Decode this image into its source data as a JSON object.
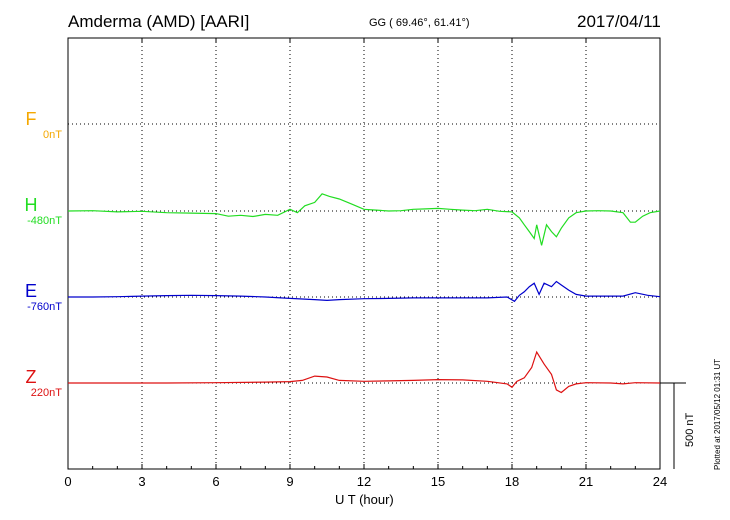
{
  "header": {
    "station": "Amderma (AMD)  [AARI]",
    "coords": "GG ( 69.46°,  61.41°)",
    "date": "2017/04/11"
  },
  "footer": {
    "plotted_text": "Plotted at 2017/05/12 01:31  UT"
  },
  "chart_data": {
    "type": "line",
    "title": "Amderma (AMD)  [AARI]",
    "xlabel": "U T (hour)",
    "ylabel": "",
    "xlim": [
      0,
      24
    ],
    "xticks": [
      0,
      3,
      6,
      9,
      12,
      15,
      18,
      21,
      24
    ],
    "xtick_labels": [
      "0",
      "3",
      "6",
      "9",
      "12",
      "15",
      "18",
      "21",
      "24"
    ],
    "scale_bar": {
      "value": 500,
      "label": "500 nT"
    },
    "grid": true,
    "colors": {
      "F": "#f5a800",
      "H": "#22dd22",
      "E": "#0000cc",
      "Z": "#dd1111"
    },
    "series": [
      {
        "name": "F",
        "baseline_label": "0nT",
        "data": []
      },
      {
        "name": "H",
        "baseline_label": "-480nT",
        "data": [
          [
            0,
            -480
          ],
          [
            1,
            -478
          ],
          [
            2,
            -485
          ],
          [
            3,
            -482
          ],
          [
            4,
            -490
          ],
          [
            5,
            -492
          ],
          [
            6,
            -495
          ],
          [
            6.5,
            -510
          ],
          [
            7,
            -505
          ],
          [
            7.5,
            -512
          ],
          [
            8,
            -500
          ],
          [
            8.5,
            -505
          ],
          [
            9,
            -470
          ],
          [
            9.3,
            -490
          ],
          [
            9.6,
            -450
          ],
          [
            10,
            -430
          ],
          [
            10.3,
            -380
          ],
          [
            10.6,
            -395
          ],
          [
            11,
            -410
          ],
          [
            11.5,
            -440
          ],
          [
            12,
            -470
          ],
          [
            12.5,
            -475
          ],
          [
            13,
            -480
          ],
          [
            13.5,
            -478
          ],
          [
            14,
            -470
          ],
          [
            14.5,
            -468
          ],
          [
            15,
            -465
          ],
          [
            15.5,
            -470
          ],
          [
            16,
            -475
          ],
          [
            16.5,
            -478
          ],
          [
            17,
            -470
          ],
          [
            17.5,
            -482
          ],
          [
            18,
            -485
          ],
          [
            18.3,
            -520
          ],
          [
            18.5,
            -560
          ],
          [
            18.7,
            -600
          ],
          [
            18.9,
            -640
          ],
          [
            19.0,
            -560
          ],
          [
            19.2,
            -680
          ],
          [
            19.4,
            -560
          ],
          [
            19.6,
            -600
          ],
          [
            19.8,
            -630
          ],
          [
            20,
            -580
          ],
          [
            20.3,
            -520
          ],
          [
            20.6,
            -490
          ],
          [
            21,
            -480
          ],
          [
            21.5,
            -478
          ],
          [
            22,
            -480
          ],
          [
            22.5,
            -490
          ],
          [
            22.8,
            -545
          ],
          [
            23,
            -545
          ],
          [
            23.3,
            -510
          ],
          [
            23.6,
            -490
          ],
          [
            24,
            -480
          ]
        ]
      },
      {
        "name": "E",
        "baseline_label": "-760nT",
        "data": [
          [
            0,
            -760
          ],
          [
            1,
            -760
          ],
          [
            2,
            -758
          ],
          [
            3,
            -755
          ],
          [
            4,
            -752
          ],
          [
            5,
            -750
          ],
          [
            6,
            -752
          ],
          [
            7,
            -755
          ],
          [
            8,
            -760
          ],
          [
            9,
            -768
          ],
          [
            10,
            -775
          ],
          [
            10.5,
            -780
          ],
          [
            11,
            -775
          ],
          [
            12,
            -770
          ],
          [
            13,
            -768
          ],
          [
            14,
            -765
          ],
          [
            15,
            -765
          ],
          [
            16,
            -765
          ],
          [
            17,
            -765
          ],
          [
            17.8,
            -760
          ],
          [
            18.1,
            -785
          ],
          [
            18.3,
            -750
          ],
          [
            18.5,
            -730
          ],
          [
            18.7,
            -700
          ],
          [
            18.9,
            -680
          ],
          [
            19.1,
            -745
          ],
          [
            19.3,
            -680
          ],
          [
            19.6,
            -700
          ],
          [
            19.8,
            -670
          ],
          [
            20,
            -690
          ],
          [
            20.3,
            -720
          ],
          [
            20.6,
            -745
          ],
          [
            21,
            -755
          ],
          [
            21.5,
            -755
          ],
          [
            22,
            -755
          ],
          [
            22.5,
            -755
          ],
          [
            23,
            -735
          ],
          [
            23.5,
            -750
          ],
          [
            24,
            -758
          ]
        ]
      },
      {
        "name": "Z",
        "baseline_label": "220nT",
        "data": [
          [
            0,
            220
          ],
          [
            2,
            220
          ],
          [
            4,
            220
          ],
          [
            6,
            222
          ],
          [
            8,
            225
          ],
          [
            9,
            228
          ],
          [
            9.5,
            235
          ],
          [
            10,
            260
          ],
          [
            10.5,
            255
          ],
          [
            11,
            235
          ],
          [
            12,
            230
          ],
          [
            13,
            232
          ],
          [
            14,
            235
          ],
          [
            15,
            240
          ],
          [
            16,
            238
          ],
          [
            17,
            230
          ],
          [
            17.8,
            215
          ],
          [
            18,
            195
          ],
          [
            18.2,
            230
          ],
          [
            18.5,
            250
          ],
          [
            18.8,
            310
          ],
          [
            19.0,
            400
          ],
          [
            19.3,
            330
          ],
          [
            19.6,
            270
          ],
          [
            19.8,
            180
          ],
          [
            20,
            165
          ],
          [
            20.3,
            200
          ],
          [
            20.6,
            215
          ],
          [
            21,
            222
          ],
          [
            22,
            220
          ],
          [
            22.5,
            215
          ],
          [
            23,
            222
          ],
          [
            24,
            220
          ]
        ]
      }
    ]
  }
}
